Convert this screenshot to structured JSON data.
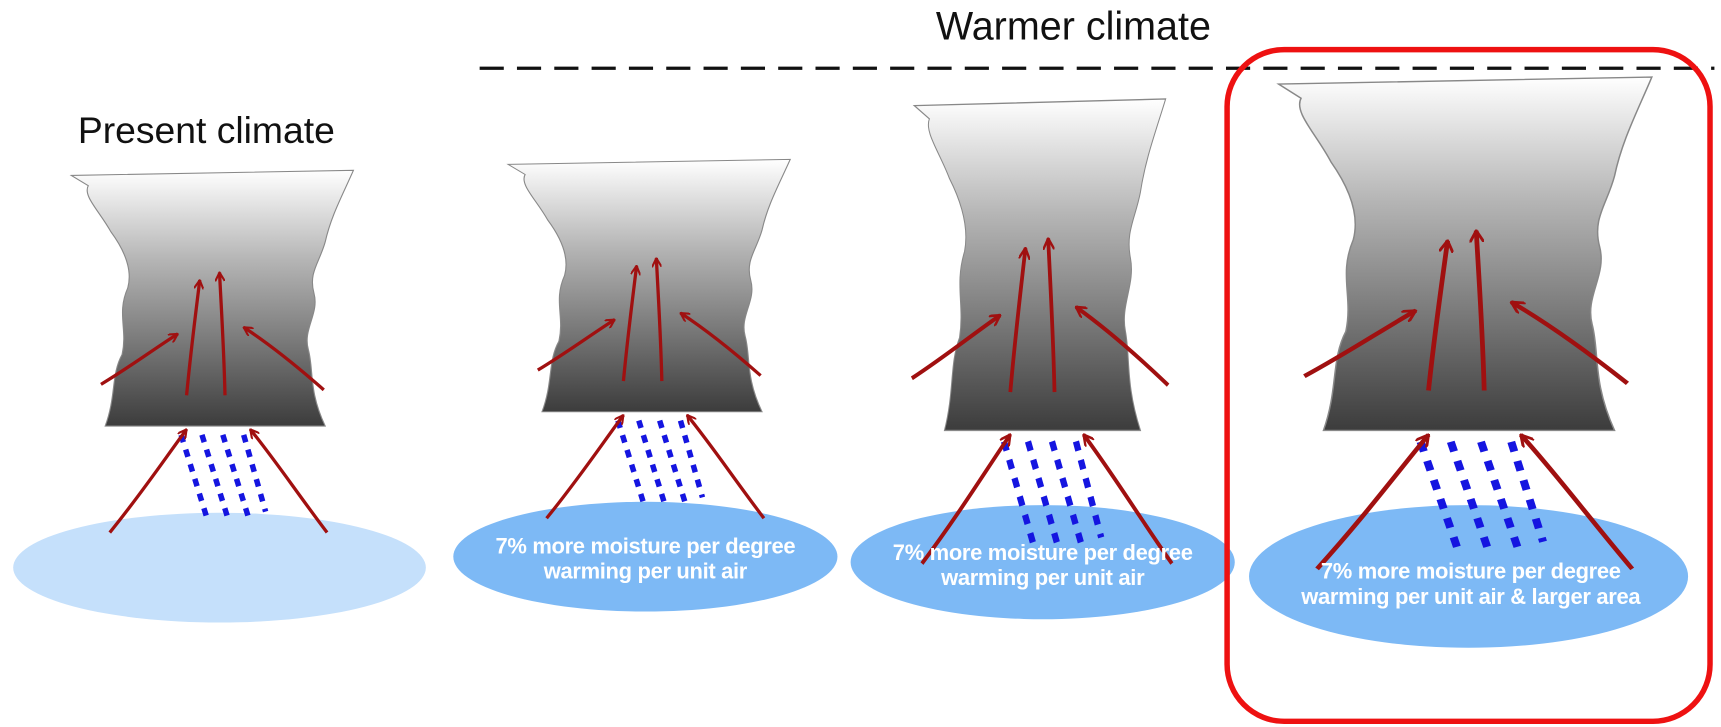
{
  "header": {
    "present": "Present climate",
    "warmer": "Warmer climate"
  },
  "panels": [
    {
      "note": "7% more moisture per degree warming per unit air"
    },
    {
      "note": "7% more moisture per degree warming per unit air"
    },
    {
      "note": "7% more moisture per degree warming per unit air & larger area"
    }
  ]
}
